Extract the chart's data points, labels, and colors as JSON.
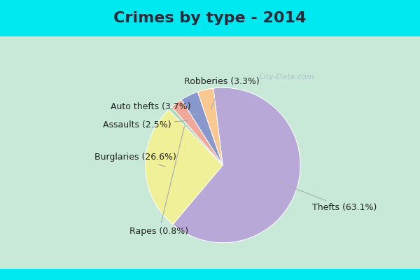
{
  "title": "Crimes by type - 2014",
  "slices": [
    {
      "label": "Thefts",
      "pct": 63.1,
      "color": "#b8a8d8"
    },
    {
      "label": "Burglaries",
      "pct": 26.6,
      "color": "#f0f098"
    },
    {
      "label": "Rapes",
      "pct": 0.8,
      "color": "#b0d8b8"
    },
    {
      "label": "Assaults",
      "pct": 2.5,
      "color": "#f0a898"
    },
    {
      "label": "Auto thefts",
      "pct": 3.7,
      "color": "#8898cc"
    },
    {
      "label": "Robberies",
      "pct": 3.3,
      "color": "#f8c890"
    }
  ],
  "bg_cyan": "#00e8f0",
  "bg_main": "#c8e8d8",
  "title_fontsize": 16,
  "label_fontsize": 9,
  "startangle": 97,
  "watermark": "City-Data.com"
}
